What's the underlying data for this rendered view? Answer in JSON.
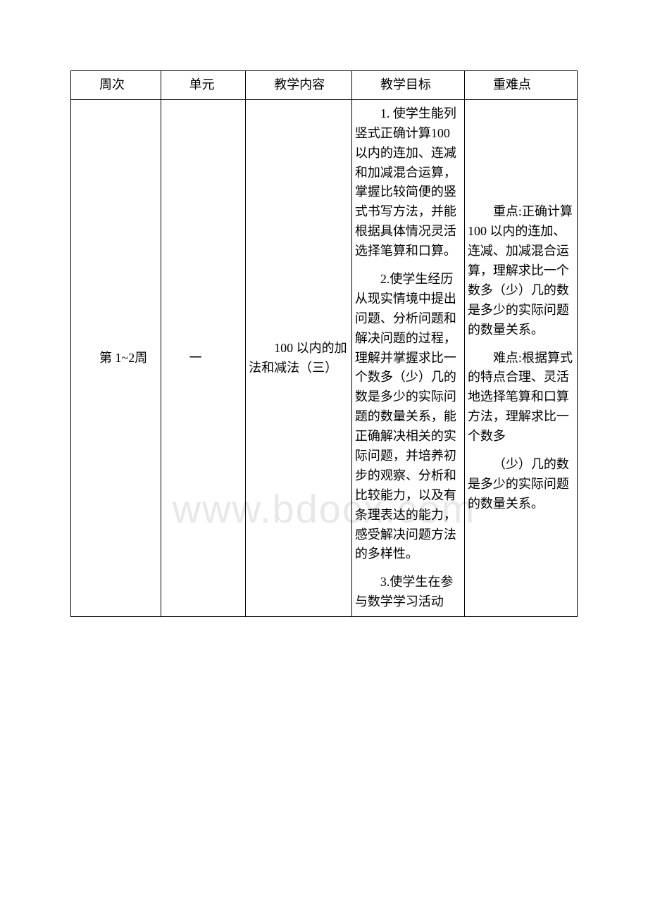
{
  "watermark": "www.bdocx.com",
  "header": {
    "week": "周次",
    "unit": "单元",
    "content": "教学内容",
    "goal": "教学目标",
    "key": "重难点"
  },
  "row1": {
    "week": "第 1~2周",
    "unit": "一",
    "content": "100 以内的加法和减法（三）",
    "goal_p1": "1. 使学生能列竖式正确计算100 以内的连加、连减和加减混合运算，掌握比较简便的竖式书写方法，并能根据具体情况灵活选择笔算和口算。",
    "goal_p2": "2.使学生经历从现实情境中提出问题、分析问题和解决问题的过程，理解并掌握求比一个数多（少）几的数是多少的实际问题的数量关系，能正确解决相关的实际问题，并培养初步的观察、分析和比较能力，以及有条理表达的能力，感受解决问题方法的多样性。",
    "goal_p3": "3.使学生在参与数学学习活动",
    "key_p1": "重点:正确计算100 以内的连加、连减、加减混合运算，理解求比一个数多（少）几的数是多少的实际问题的数量关系。",
    "key_p2": "难点:根据算式的特点合理、灵活地选择笔算和口算方法，理解求比一个数多",
    "key_p3": "（少）几的数是多少的实际问题的数量关系。"
  }
}
